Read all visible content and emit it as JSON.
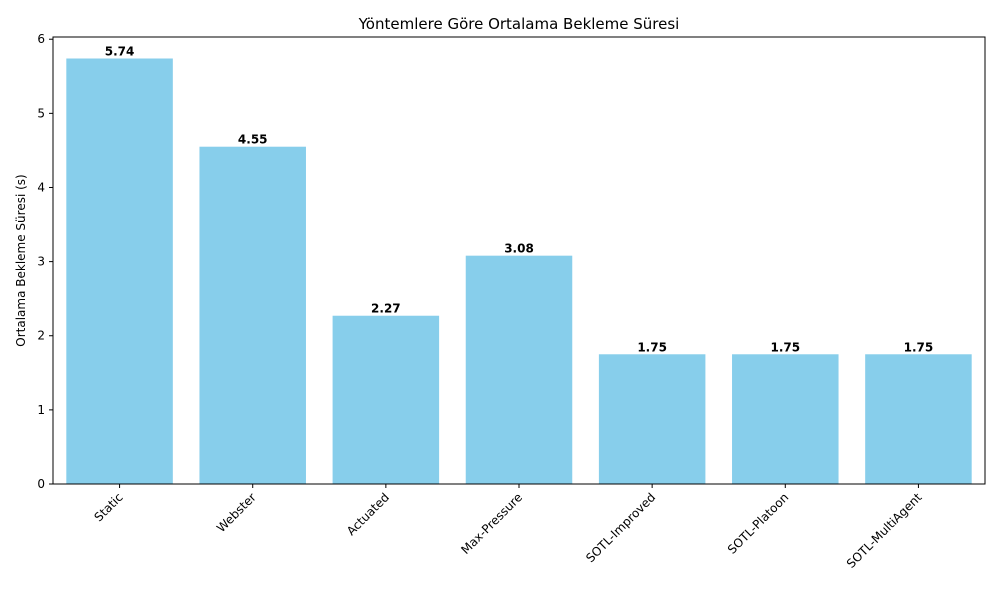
{
  "chart_data": {
    "type": "bar",
    "title": "Yöntemlere Göre Ortalama Bekleme Süresi",
    "xlabel": "",
    "ylabel": "Ortalama Bekleme Süresi (s)",
    "categories": [
      "Static",
      "Webster",
      "Actuated",
      "Max-Pressure",
      "SOTL-Improved",
      "SOTL-Platoon",
      "SOTL-MultiAgent"
    ],
    "values": [
      5.74,
      4.55,
      2.27,
      3.08,
      1.75,
      1.75,
      1.75
    ],
    "value_labels": [
      "5.74",
      "4.55",
      "2.27",
      "3.08",
      "1.75",
      "1.75",
      "1.75"
    ],
    "ylim": [
      0,
      6.03
    ],
    "yticks": [
      0,
      1,
      2,
      3,
      4,
      5,
      6
    ],
    "ytick_labels": [
      "0",
      "1",
      "2",
      "3",
      "4",
      "5",
      "6"
    ],
    "bar_color": "#87CEEB",
    "grid": false,
    "xtick_rotation_deg": 45
  }
}
